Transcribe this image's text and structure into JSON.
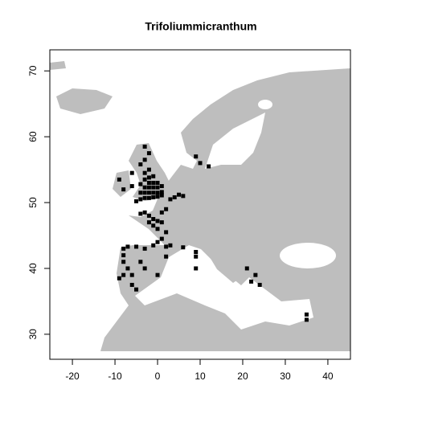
{
  "chart_data": {
    "type": "scatter",
    "title": "Trifoliummicranthum",
    "x": [
      -5,
      -4,
      -3,
      -2,
      -1,
      0,
      1,
      -4,
      -3,
      -2,
      -1,
      0,
      1,
      -3,
      -2,
      -1,
      0,
      1,
      -4,
      -2,
      -1,
      0,
      -3,
      -2,
      -1,
      -3,
      -2,
      -4,
      -3,
      -2,
      -3,
      -6,
      -8,
      -9,
      -6,
      -3,
      -4,
      -2,
      -1,
      0,
      1,
      -2,
      -1,
      0,
      1,
      2,
      3,
      4,
      5,
      6,
      2,
      1,
      0,
      -1,
      2,
      3,
      6,
      -8,
      -7,
      -5,
      -3,
      -8,
      -8,
      -7,
      -8,
      -9,
      -6,
      -5,
      -3,
      -4,
      -6,
      0,
      2,
      9,
      9,
      9,
      22,
      23,
      24,
      21,
      35,
      35,
      10,
      12,
      9
    ],
    "values": [
      50.2,
      50.5,
      50.7,
      50.7,
      50.8,
      50.9,
      51.1,
      51.5,
      51.5,
      51.5,
      51.5,
      51.5,
      51.6,
      52.3,
      52.3,
      52.3,
      52.3,
      52.5,
      52.8,
      53,
      53,
      53,
      53.5,
      53.8,
      54,
      54.5,
      55,
      55.8,
      56.5,
      57.5,
      58.5,
      52.5,
      52,
      53.5,
      54.5,
      48.5,
      48.3,
      48,
      47.5,
      47.2,
      47,
      47,
      46.5,
      46,
      48.5,
      49,
      50.5,
      50.8,
      51.2,
      51,
      45.5,
      44.5,
      44,
      43.5,
      43.3,
      43.5,
      43.2,
      43,
      43.3,
      43.3,
      43,
      42,
      41,
      40,
      39,
      38.5,
      37.5,
      36.8,
      40,
      41,
      39,
      39,
      41.8,
      42.5,
      41.8,
      40,
      38,
      39,
      37.5,
      40,
      33,
      32.2,
      56,
      55.5,
      57
    ],
    "color": "#000000",
    "xlim": [
      -25.3,
      45.3
    ],
    "ylim": [
      26.2,
      73.2
    ],
    "xticks": [
      -20,
      -10,
      0,
      10,
      20,
      30,
      40
    ],
    "yticks": [
      30,
      40,
      50,
      60,
      70
    ]
  }
}
